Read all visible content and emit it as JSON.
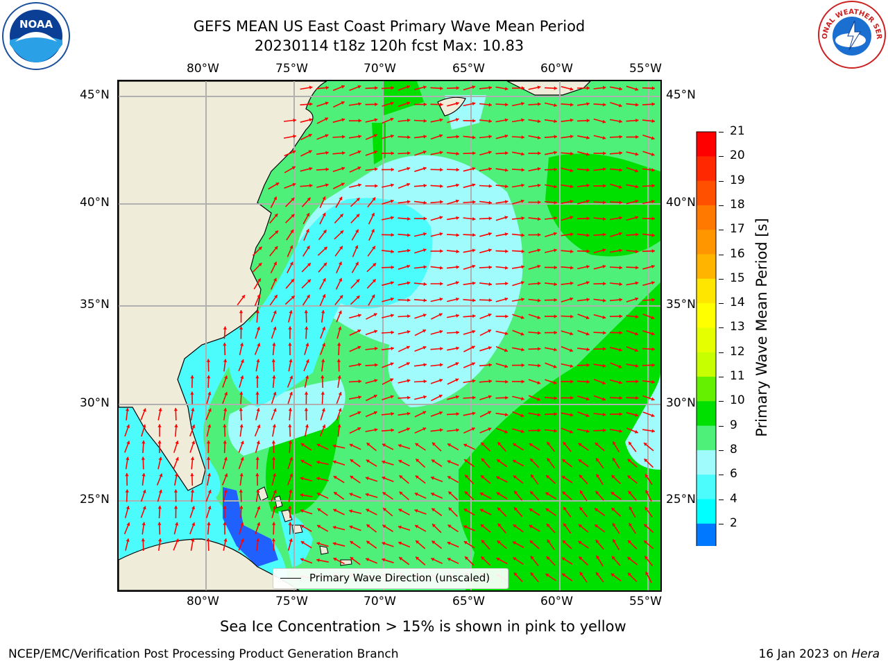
{
  "header": {
    "title_line1": "GEFS MEAN US East Coast Primary Wave Mean Period",
    "title_line2": "20230114 t18z 120h fcst   Max: 10.83",
    "left_logo_text": "NOAA",
    "right_logo_text": "NATIONAL WEATHER SERVICE"
  },
  "map": {
    "lon_labels": [
      "80°W",
      "75°W",
      "70°W",
      "65°W",
      "60°W",
      "55°W"
    ],
    "lat_labels": [
      "45°N",
      "40°N",
      "35°N",
      "30°N",
      "25°N"
    ],
    "legend_label": "Primary Wave Direction (unscaled)",
    "colors": {
      "land": "#efedd9",
      "period_green": "#4ef07a",
      "period_dark_green": "#00e000",
      "period_cyan": "#4cfbfb",
      "period_light_cyan": "#a0fcfc",
      "period_blue": "#2060ff",
      "arrow": "#ff0000"
    }
  },
  "colorbar": {
    "label": "Primary Wave Mean Period [s]",
    "ticks": [
      "21",
      "20",
      "19",
      "18",
      "17",
      "16",
      "15",
      "14",
      "13",
      "12",
      "11",
      "10",
      "9",
      "8",
      "6",
      "4",
      "2"
    ],
    "colors": [
      "#ff0000",
      "#ff2800",
      "#ff5000",
      "#ff7800",
      "#ff9600",
      "#ffb400",
      "#ffe600",
      "#ffff00",
      "#e6ff00",
      "#c8ff00",
      "#64f000",
      "#00e000",
      "#4ef07a",
      "#a0fcfc",
      "#4cfbfb",
      "#00ffff",
      "#0078ff",
      "#0000ff"
    ]
  },
  "notes": {
    "sea_ice": "Sea Ice Concentration > 15% is shown in pink to yellow"
  },
  "footer": {
    "left": "NCEP/EMC/Verification Post Processing Product Generation Branch",
    "date": "16 Jan 2023 on ",
    "machine": "Hera"
  }
}
